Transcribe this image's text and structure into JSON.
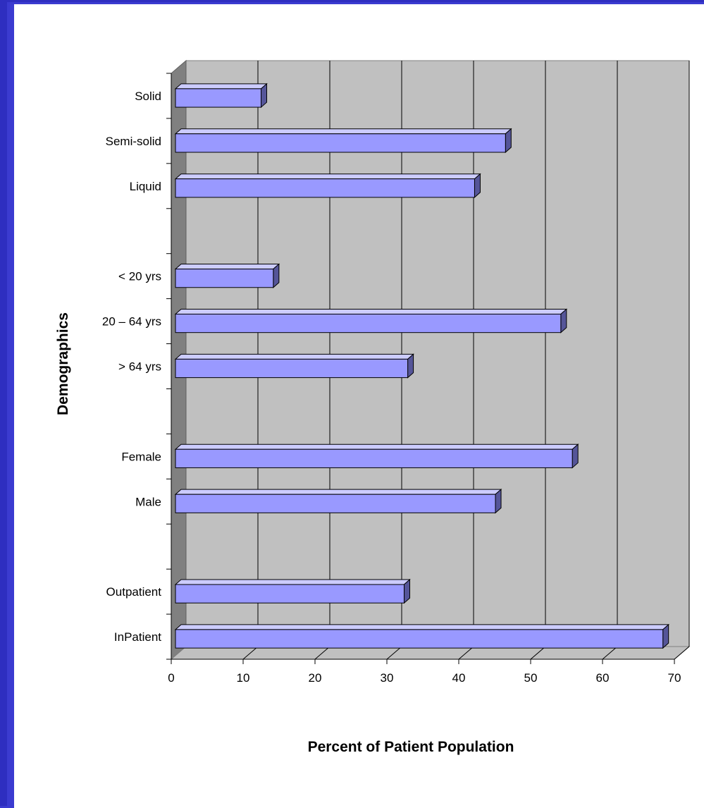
{
  "chart_data": {
    "type": "bar",
    "orientation": "horizontal",
    "style": "3d",
    "xlabel": "Percent of Patient Population",
    "ylabel": "Demographics",
    "xlim": [
      0,
      70
    ],
    "xticks": [
      0,
      10,
      20,
      30,
      40,
      50,
      60,
      70
    ],
    "grid": true,
    "legend": "none",
    "groups": [
      {
        "categories": [
          "Solid",
          "Semi-solid",
          "Liquid"
        ],
        "values": [
          12.5,
          46.5,
          42.2
        ]
      },
      {
        "categories": [
          "< 20 yrs",
          "20 – 64 yrs",
          "> 64 yrs"
        ],
        "values": [
          14.2,
          54.2,
          32.9
        ]
      },
      {
        "categories": [
          "Female",
          "Male"
        ],
        "values": [
          55.8,
          45.1
        ]
      },
      {
        "categories": [
          "Outpatient",
          "InPatient"
        ],
        "values": [
          32.4,
          68.4
        ]
      }
    ],
    "colors": {
      "bar_front": "#9999ff",
      "bar_top": "#ccccff",
      "bar_side": "#555599",
      "wall": "#c0c0c0",
      "side_wall": "#808080",
      "floor": "#c0c0c0",
      "frame": "#3b3bd0"
    }
  }
}
